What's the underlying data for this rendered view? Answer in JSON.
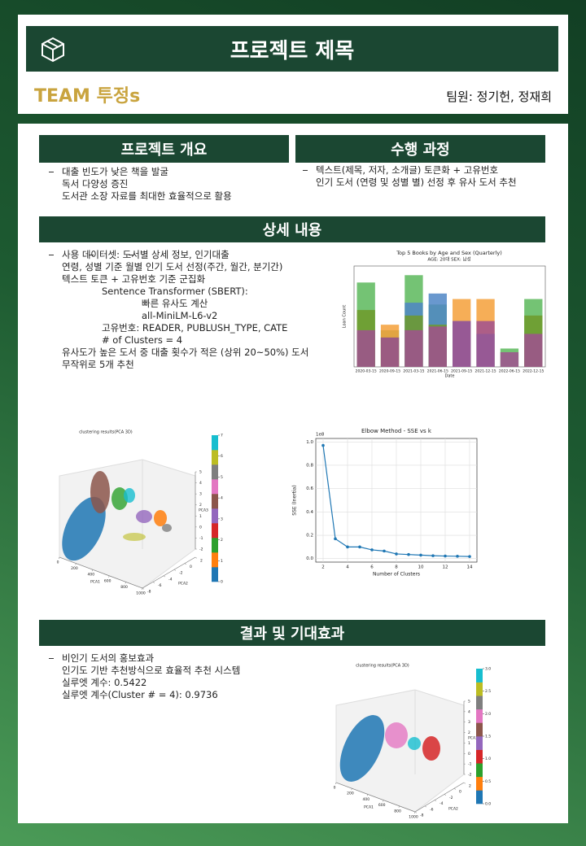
{
  "header": {
    "title": "프로젝트 제목",
    "team": "TEAM 투정s",
    "members": "팀원: 정기헌, 정재희"
  },
  "overview": {
    "heading": "프로젝트 개요",
    "items": [
      "대출 빈도가 낮은 책을 발굴",
      "독서 다양성 증진",
      "도서관 소장 자료를 최대한 효율적으로 활용"
    ]
  },
  "process": {
    "heading": "수행 과정",
    "items": [
      "텍스트(제목, 저자, 소개글) 토큰화 + 고유번호",
      "인기 도서 (연령 및 성별 별) 선정 후 유사 도서 추천"
    ]
  },
  "details": {
    "heading": "상세 내용",
    "items": [
      "사용 데이터셋: 도서별 상세 정보, 인기대출",
      "연령, 성별 기준 월별 인기 도서 선정(주간, 월간, 분기간)",
      {
        "text": "텍스트 토큰 + 고유번호 기준 군집화",
        "items": [
          {
            "text": "Sentence Transformer (SBERT):",
            "items": [
              "빠른 유사도 계산",
              "all-MiniLM-L6-v2"
            ]
          },
          "고유번호: READER, PUBLUSH_TYPE, CATE",
          "# of Clusters = 4"
        ]
      },
      "유사도가 높은 도서 중 대출 횟수가 적은 (상위 20~50%) 도서 무작위로 5개 추천"
    ]
  },
  "results": {
    "heading": "결과 및 기대효과",
    "items": [
      "비인기 도서의 홍보효과",
      "인기도 기반 추천방식으로 효율적 추천 시스템",
      "실루엣 계수: 0.5422",
      "실루엣 계수(Cluster # = 4): 0.9736"
    ]
  },
  "figures": [
    {
      "type": "bar",
      "title": "Top 5 Books by Age and Sex (Quarterly)",
      "subtitle": "AGE: 20대 SEX: 남성",
      "x_label": "Date",
      "y_label": "Loan Count",
      "categories": [
        "2020-03-15",
        "2020-09-15",
        "2021-03-15",
        "2021-06-15",
        "2021-09-15",
        "2021-12-15",
        "2022-06-15",
        "2022-12-15"
      ],
      "ylim": [
        0,
        5.5
      ],
      "series": [
        {
          "color": "#5cb85c",
          "values": [
            4.6,
            2.0,
            5.0,
            3.4,
            null,
            null,
            1.0,
            3.7
          ]
        },
        {
          "color": "#f5a03a",
          "values": [
            null,
            2.3,
            null,
            null,
            3.7,
            3.7,
            null,
            null
          ]
        },
        {
          "color": "#4f86c6",
          "values": [
            null,
            null,
            3.5,
            4.0,
            2.5,
            1.8,
            null,
            null
          ]
        },
        {
          "color": "#6f9a2a",
          "values": [
            3.1,
            1.6,
            2.8,
            2.3,
            null,
            null,
            null,
            2.8
          ]
        },
        {
          "color": "#a0508f",
          "values": [
            2.0,
            1.6,
            2.0,
            2.2,
            2.5,
            2.5,
            0.8,
            1.8
          ]
        }
      ]
    },
    {
      "type": "scatter3d",
      "title": "clustering results(PCA 3D)",
      "x_label": "PCA1",
      "y_label": "PCA2",
      "z_label": "PCA3",
      "xticks": [
        0,
        200,
        400,
        600,
        800,
        1000
      ],
      "yticks": [
        -8,
        -6,
        -4,
        -2,
        0,
        2
      ],
      "zticks": [
        -2,
        -1,
        0,
        1,
        2,
        3,
        4,
        5
      ],
      "colorbar_ticks": [
        0,
        1,
        2,
        3,
        4,
        5,
        6,
        7
      ],
      "colorbar_colors": [
        "#1f77b4",
        "#ff7f0e",
        "#2ca02c",
        "#d62728",
        "#9467bd",
        "#8c564b",
        "#e377c2",
        "#7f7f7f",
        "#bcbd22",
        "#17becf"
      ]
    },
    {
      "type": "line",
      "title": "Elbow Method - SSE vs k",
      "x_label": "Number of Clusters",
      "y_label": "SSE (Inertia)",
      "offset_label": "1e8",
      "x": [
        2,
        3,
        4,
        5,
        6,
        7,
        8,
        9,
        10,
        11,
        12,
        13,
        14
      ],
      "values": [
        0.97,
        0.17,
        0.1,
        0.1,
        0.075,
        0.065,
        0.04,
        0.035,
        0.03,
        0.025,
        0.022,
        0.02,
        0.018
      ],
      "xlim": [
        1.4,
        14.6
      ],
      "ylim": [
        -0.03,
        1.03
      ],
      "xticks": [
        2,
        4,
        6,
        8,
        10,
        12,
        14
      ],
      "yticks": [
        {
          "value": 0,
          "label": "0.0"
        },
        0.2,
        0.4,
        0.6,
        0.8,
        {
          "value": 1,
          "label": "1.0"
        }
      ],
      "color": "#1f77b4",
      "grid": true
    },
    {
      "type": "scatter3d",
      "title": "clustering results(PCA 3D)",
      "x_label": "PCA1",
      "y_label": "PCA2",
      "z_label": "PCA3",
      "xticks": [
        0,
        200,
        400,
        600,
        800,
        1000
      ],
      "yticks": [
        -8,
        -6,
        -4,
        -2,
        0,
        2
      ],
      "zticks": [
        -2,
        -1,
        0,
        1,
        2,
        3,
        4,
        5
      ],
      "colorbar_ticks": [
        {
          "value": 0,
          "label": "0.0"
        },
        0.5,
        {
          "value": 1,
          "label": "1.0"
        },
        1.5,
        {
          "value": 2,
          "label": "2.0"
        },
        2.5,
        {
          "value": 3,
          "label": "3.0"
        }
      ],
      "colorbar_colors": [
        "#1f77b4",
        "#ff7f0e",
        "#2ca02c",
        "#d62728",
        "#9467bd",
        "#8c564b",
        "#e377c2",
        "#7f7f7f",
        "#bcbd22",
        "#17becf"
      ]
    }
  ]
}
